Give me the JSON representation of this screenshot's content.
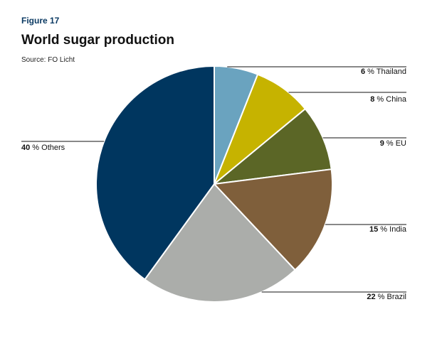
{
  "figure_label": "Figure 17",
  "title": "World sugar production",
  "source": "Source: FO Licht",
  "chart_data": {
    "type": "pie",
    "title": "World sugar production",
    "unit": "%",
    "slices": [
      {
        "label": "Thailand",
        "value": 6,
        "color": "#6aa3bf"
      },
      {
        "label": "China",
        "value": 8,
        "color": "#c6b300"
      },
      {
        "label": "EU",
        "value": 9,
        "color": "#5b6626"
      },
      {
        "label": "India",
        "value": 15,
        "color": "#7f5f3b"
      },
      {
        "label": "Brazil",
        "value": 22,
        "color": "#abadaa"
      },
      {
        "label": "Others",
        "value": 40,
        "color": "#00365f"
      }
    ]
  }
}
